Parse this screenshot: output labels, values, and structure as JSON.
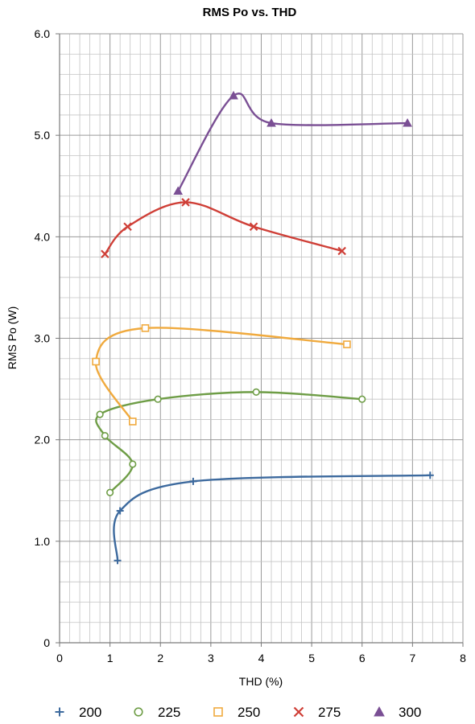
{
  "chart_data": {
    "type": "scatter",
    "title": "RMS Po vs. THD",
    "xlabel": "THD (%)",
    "ylabel": "RMS Po (W)",
    "xlim": [
      0,
      8
    ],
    "ylim": [
      0,
      6
    ],
    "xticks": [
      0,
      1,
      2,
      3,
      4,
      5,
      6,
      7,
      8
    ],
    "yticks": [
      0,
      1,
      2,
      3,
      4,
      5,
      6
    ],
    "xtick_labels": [
      "0",
      "1",
      "2",
      "3",
      "4",
      "5",
      "6",
      "7",
      "8"
    ],
    "ytick_labels": [
      "0",
      "1.0",
      "2.0",
      "3.0",
      "4.0",
      "5.0",
      "6.0"
    ],
    "grid": true,
    "smooth_lines": true,
    "legend_position": "bottom",
    "series": [
      {
        "name": "200",
        "color": "#3d6a9e",
        "marker": "plus",
        "points": [
          [
            1.15,
            0.81
          ],
          [
            1.2,
            1.3
          ],
          [
            2.65,
            1.59
          ],
          [
            7.35,
            1.65
          ]
        ]
      },
      {
        "name": "225",
        "color": "#6e9d46",
        "marker": "circle",
        "points": [
          [
            1.0,
            1.48
          ],
          [
            1.45,
            1.76
          ],
          [
            0.9,
            2.04
          ],
          [
            0.8,
            2.25
          ],
          [
            1.95,
            2.4
          ],
          [
            3.9,
            2.47
          ],
          [
            6.0,
            2.4
          ]
        ]
      },
      {
        "name": "250",
        "color": "#f0aa3e",
        "marker": "square",
        "points": [
          [
            1.45,
            2.18
          ],
          [
            0.72,
            2.77
          ],
          [
            1.7,
            3.1
          ],
          [
            5.7,
            2.94
          ]
        ]
      },
      {
        "name": "275",
        "color": "#cf3f37",
        "marker": "x",
        "points": [
          [
            0.9,
            3.83
          ],
          [
            1.35,
            4.1
          ],
          [
            2.5,
            4.34
          ],
          [
            3.85,
            4.1
          ],
          [
            5.6,
            3.86
          ]
        ]
      },
      {
        "name": "300",
        "color": "#7a4f94",
        "marker": "triangle",
        "points": [
          [
            2.35,
            4.45
          ],
          [
            3.45,
            5.39
          ],
          [
            4.2,
            5.12
          ],
          [
            6.9,
            5.12
          ]
        ]
      }
    ]
  }
}
